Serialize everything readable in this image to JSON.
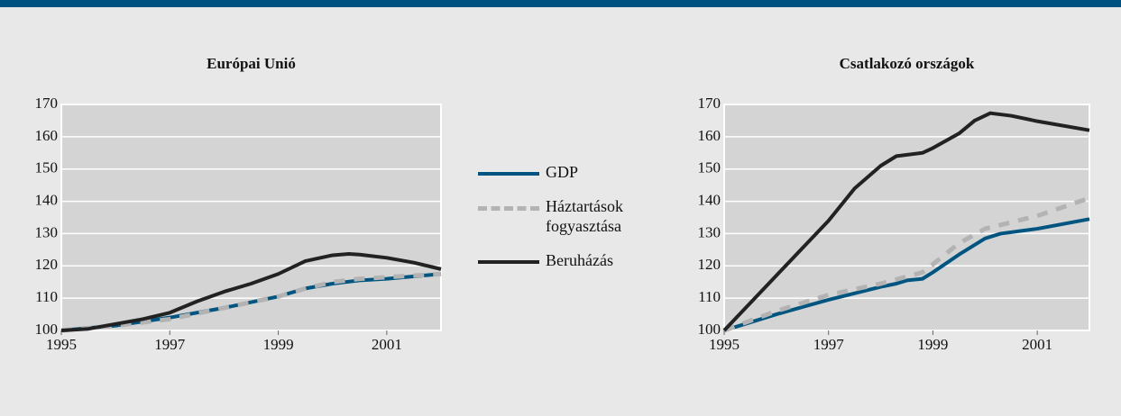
{
  "chart_data": [
    {
      "type": "line",
      "title": "Európai Unió",
      "xlim": [
        1995,
        2002
      ],
      "xticks": [
        1995,
        1997,
        1999,
        2001
      ],
      "ylim": [
        100,
        170
      ],
      "yticks": [
        100,
        110,
        120,
        130,
        140,
        150,
        160,
        170
      ],
      "grid": true,
      "series": [
        {
          "name": "GDP",
          "color": "#005580",
          "x": [
            1995,
            1996,
            1997,
            1998,
            1999,
            1999.5,
            2000,
            2000.5,
            2001,
            2002
          ],
          "values": [
            100,
            101.5,
            104,
            107,
            110.5,
            113,
            114.5,
            115.5,
            116,
            117.5
          ]
        },
        {
          "name": "Háztartások fogyasztása",
          "color": "#b3b3b3",
          "x": [
            1995,
            1996,
            1997,
            1998,
            1999,
            1999.5,
            2000,
            2000.5,
            2001,
            2002
          ],
          "values": [
            100,
            101.5,
            103.5,
            107,
            110.5,
            113,
            115,
            116,
            116.5,
            117.5
          ]
        },
        {
          "name": "Beruházás",
          "color": "#222222",
          "x": [
            1995,
            1995.5,
            1996,
            1996.5,
            1997,
            1997.5,
            1998,
            1998.5,
            1999,
            1999.5,
            2000,
            2000.3,
            2000.5,
            2001,
            2001.5,
            2002
          ],
          "values": [
            100,
            100.5,
            102,
            103.5,
            105.5,
            109,
            112,
            114.5,
            117.5,
            121.5,
            123.3,
            123.7,
            123.5,
            122.5,
            121,
            119
          ]
        }
      ]
    },
    {
      "type": "line",
      "title": "Csatlakozó országok",
      "xlim": [
        1995,
        2002
      ],
      "xticks": [
        1995,
        1997,
        1999,
        2001
      ],
      "ylim": [
        100,
        170
      ],
      "yticks": [
        100,
        110,
        120,
        130,
        140,
        150,
        160,
        170
      ],
      "grid": true,
      "series": [
        {
          "color": "#005580",
          "x": [
            1995,
            1996,
            1997,
            1998,
            1998.3,
            1998.5,
            1998.8,
            1999,
            1999.5,
            2000,
            2000.3,
            2001,
            2002
          ],
          "values": [
            100,
            105,
            109.5,
            113.5,
            114.5,
            115.5,
            116,
            118,
            123.5,
            128.5,
            130,
            131.5,
            134.5
          ]
        },
        {
          "color": "#b3b3b3",
          "x": [
            1995,
            1996,
            1997,
            1998,
            1998.8,
            1999,
            1999.5,
            2000,
            2001,
            2002
          ],
          "values": [
            100,
            106,
            111,
            114.5,
            118,
            120.5,
            127,
            131.5,
            135.5,
            141
          ]
        },
        {
          "color": "#222222",
          "x": [
            1995,
            1996,
            1997,
            1997.5,
            1998,
            1998.3,
            1998.8,
            1999,
            1999.5,
            1999.8,
            2000.1,
            2000.5,
            2001,
            2002
          ],
          "values": [
            100,
            117,
            134,
            144,
            151,
            154,
            155,
            156.5,
            161,
            165,
            167.3,
            166.5,
            164.8,
            162
          ]
        }
      ]
    }
  ]
}
